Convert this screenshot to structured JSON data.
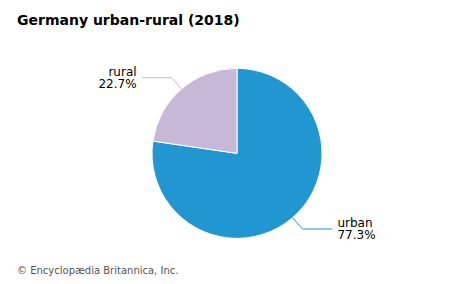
{
  "chart_data": {
    "type": "pie",
    "title": "Germany urban-rural (2018)",
    "categories": [
      "urban",
      "rural"
    ],
    "values": [
      77.3,
      22.7
    ],
    "value_labels": [
      "77.3%",
      "22.7%"
    ],
    "data_labels": true,
    "colors": [
      "#2196d0",
      "#c8b8d8"
    ],
    "footnote": "© Encyclopædia Britannica, Inc."
  }
}
